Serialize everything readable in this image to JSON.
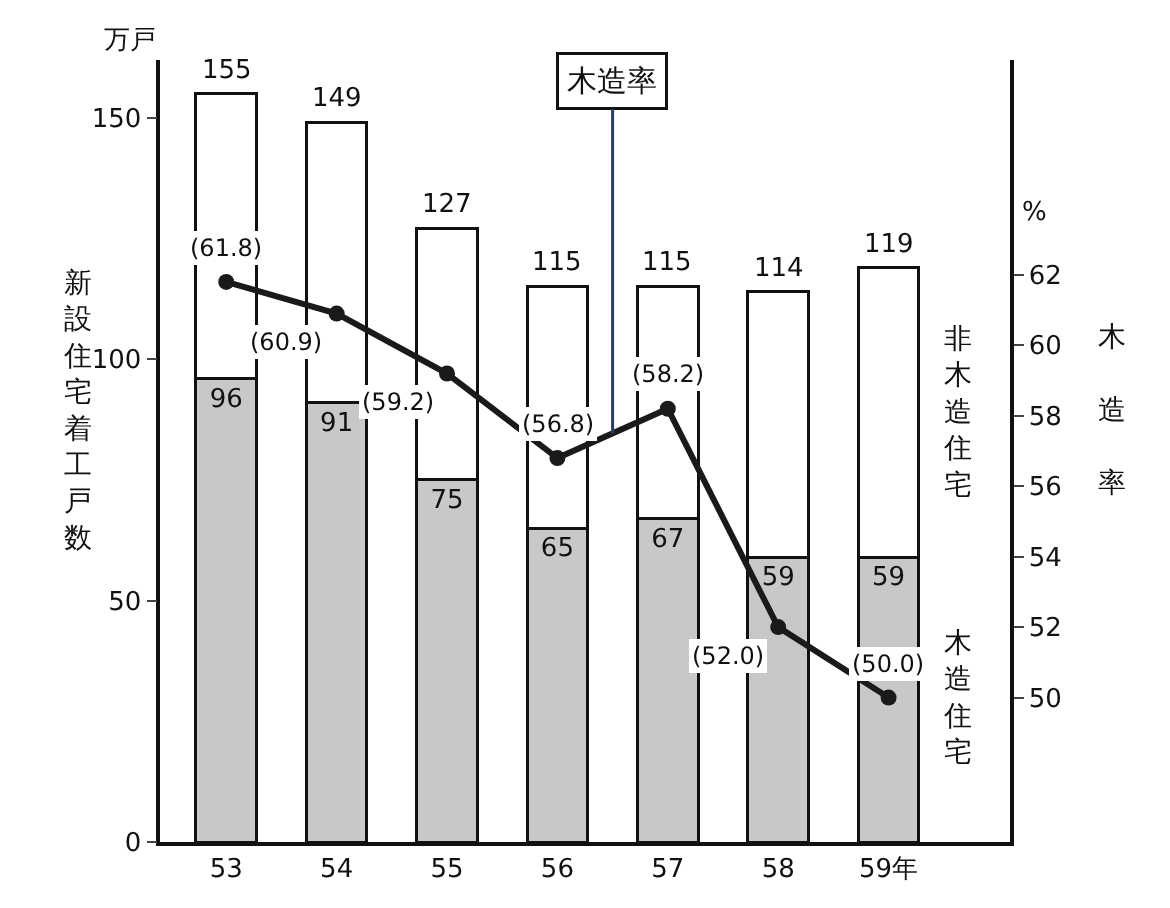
{
  "chart_data": {
    "type": "bar",
    "stacked": true,
    "categories": [
      "53",
      "54",
      "55",
      "56",
      "57",
      "58",
      "59年"
    ],
    "ylabel": "新設住宅着工戸数",
    "y2label": "木造率",
    "ylim": [
      0,
      162
    ],
    "yticks": [
      0,
      50,
      100,
      150
    ],
    "y2lim": [
      45.9,
      68.1
    ],
    "y2ticks": [
      50,
      52,
      54,
      56,
      58,
      60,
      62
    ],
    "series": [
      {
        "name": "木造住宅",
        "color": "#c8c8c8",
        "values": [
          96,
          91,
          75,
          65,
          67,
          59,
          59
        ],
        "value_labels": [
          "96",
          "91",
          "75",
          "65",
          "67",
          "59",
          "59"
        ]
      },
      {
        "name": "非木造住宅",
        "color": "#ffffff",
        "values": [
          59,
          58,
          52,
          50,
          48,
          55,
          60
        ]
      },
      {
        "name": "木造率",
        "type": "line",
        "axis": "y2",
        "color": "#1a1a1a",
        "values": [
          61.8,
          60.9,
          59.2,
          56.8,
          58.2,
          52.0,
          50.0
        ],
        "value_labels": [
          "(61.8)",
          "(60.9)",
          "(59.2)",
          "(56.8)",
          "(58.2)",
          "(52.0)",
          "(50.0)"
        ]
      }
    ],
    "totals": [
      "155",
      "149",
      "127",
      "115",
      "115",
      "114",
      "119"
    ],
    "marker": "circle",
    "annotations": [
      "万戸",
      "%"
    ]
  }
}
